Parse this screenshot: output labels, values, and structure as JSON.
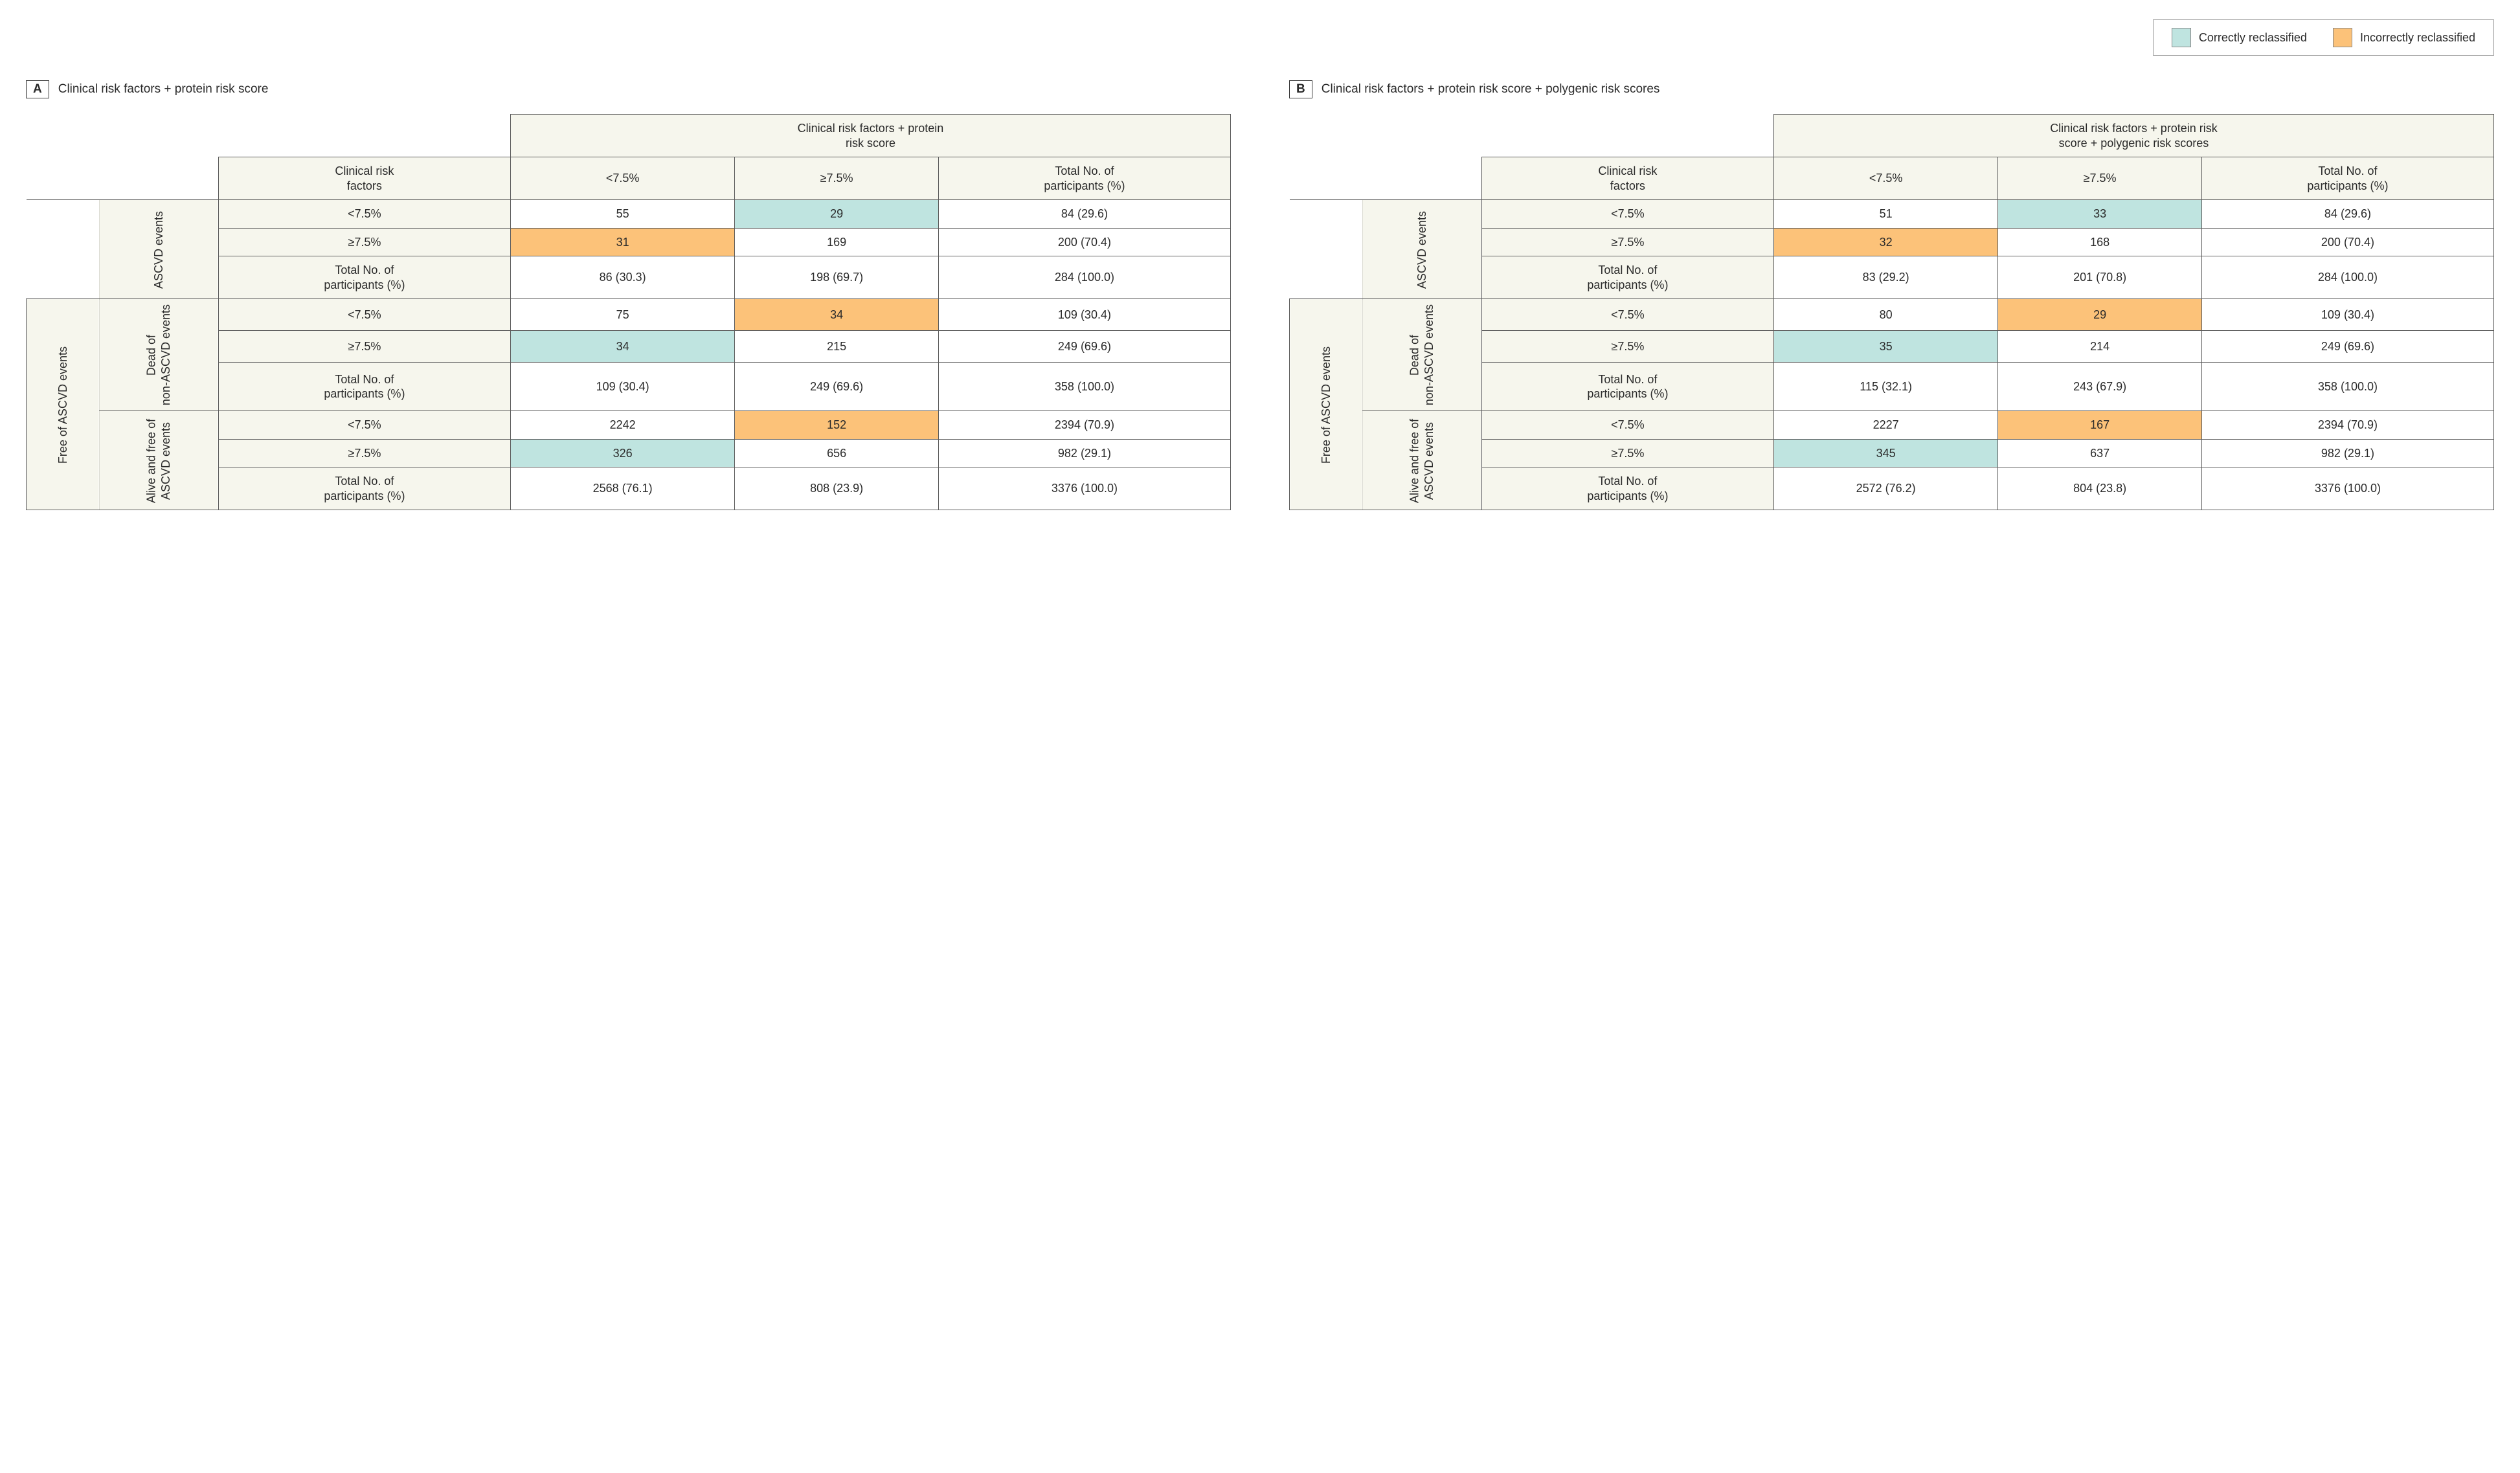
{
  "colors": {
    "correct": "#bfe4e0",
    "incorrect": "#fcc279",
    "header_bg": "#f6f6ed",
    "border": "#5b5b5b"
  },
  "legend": {
    "correct": "Correctly reclassified",
    "incorrect": "Incorrectly reclassified"
  },
  "labels": {
    "clin_factor": "Clinical risk\nfactors",
    "lt": "<7.5%",
    "ge": "≥7.5%",
    "total_col": "Total No. of\nparticipants (%)",
    "total_row": "Total No. of\nparticipants (%)",
    "ascvd": "ASCVD events",
    "free": "Free of ASCVD events",
    "dead": "Dead of\nnon-ASCVD events",
    "alive": "Alive and free of\nASCVD events"
  },
  "panelA": {
    "tag": "A",
    "title": "Clinical risk factors + protein risk score",
    "col_header": "Clinical risk factors + protein\nrisk score",
    "ascvd": {
      "lt": {
        "lt": "55",
        "ge": "29",
        "total": "84 (29.6)"
      },
      "ge": {
        "lt": "31",
        "ge": "169",
        "total": "200 (70.4)"
      },
      "tot": {
        "lt": "86 (30.3)",
        "ge": "198 (69.7)",
        "total": "284 (100.0)"
      }
    },
    "dead": {
      "lt": {
        "lt": "75",
        "ge": "34",
        "total": "109 (30.4)"
      },
      "ge": {
        "lt": "34",
        "ge": "215",
        "total": "249 (69.6)"
      },
      "tot": {
        "lt": "109 (30.4)",
        "ge": "249 (69.6)",
        "total": "358 (100.0)"
      }
    },
    "alive": {
      "lt": {
        "lt": "2242",
        "ge": "152",
        "total": "2394 (70.9)"
      },
      "ge": {
        "lt": "326",
        "ge": "656",
        "total": "982 (29.1)"
      },
      "tot": {
        "lt": "2568 (76.1)",
        "ge": "808 (23.9)",
        "total": "3376 (100.0)"
      }
    }
  },
  "panelB": {
    "tag": "B",
    "title": "Clinical risk factors + protein risk score + polygenic risk scores",
    "col_header": "Clinical risk factors + protein risk\nscore + polygenic risk scores",
    "ascvd": {
      "lt": {
        "lt": "51",
        "ge": "33",
        "total": "84 (29.6)"
      },
      "ge": {
        "lt": "32",
        "ge": "168",
        "total": "200 (70.4)"
      },
      "tot": {
        "lt": "83 (29.2)",
        "ge": "201 (70.8)",
        "total": "284 (100.0)"
      }
    },
    "dead": {
      "lt": {
        "lt": "80",
        "ge": "29",
        "total": "109 (30.4)"
      },
      "ge": {
        "lt": "35",
        "ge": "214",
        "total": "249 (69.6)"
      },
      "tot": {
        "lt": "115 (32.1)",
        "ge": "243 (67.9)",
        "total": "358 (100.0)"
      }
    },
    "alive": {
      "lt": {
        "lt": "2227",
        "ge": "167",
        "total": "2394 (70.9)"
      },
      "ge": {
        "lt": "345",
        "ge": "637",
        "total": "982 (29.1)"
      },
      "tot": {
        "lt": "2572 (76.2)",
        "ge": "804 (23.8)",
        "total": "3376 (100.0)"
      }
    }
  }
}
